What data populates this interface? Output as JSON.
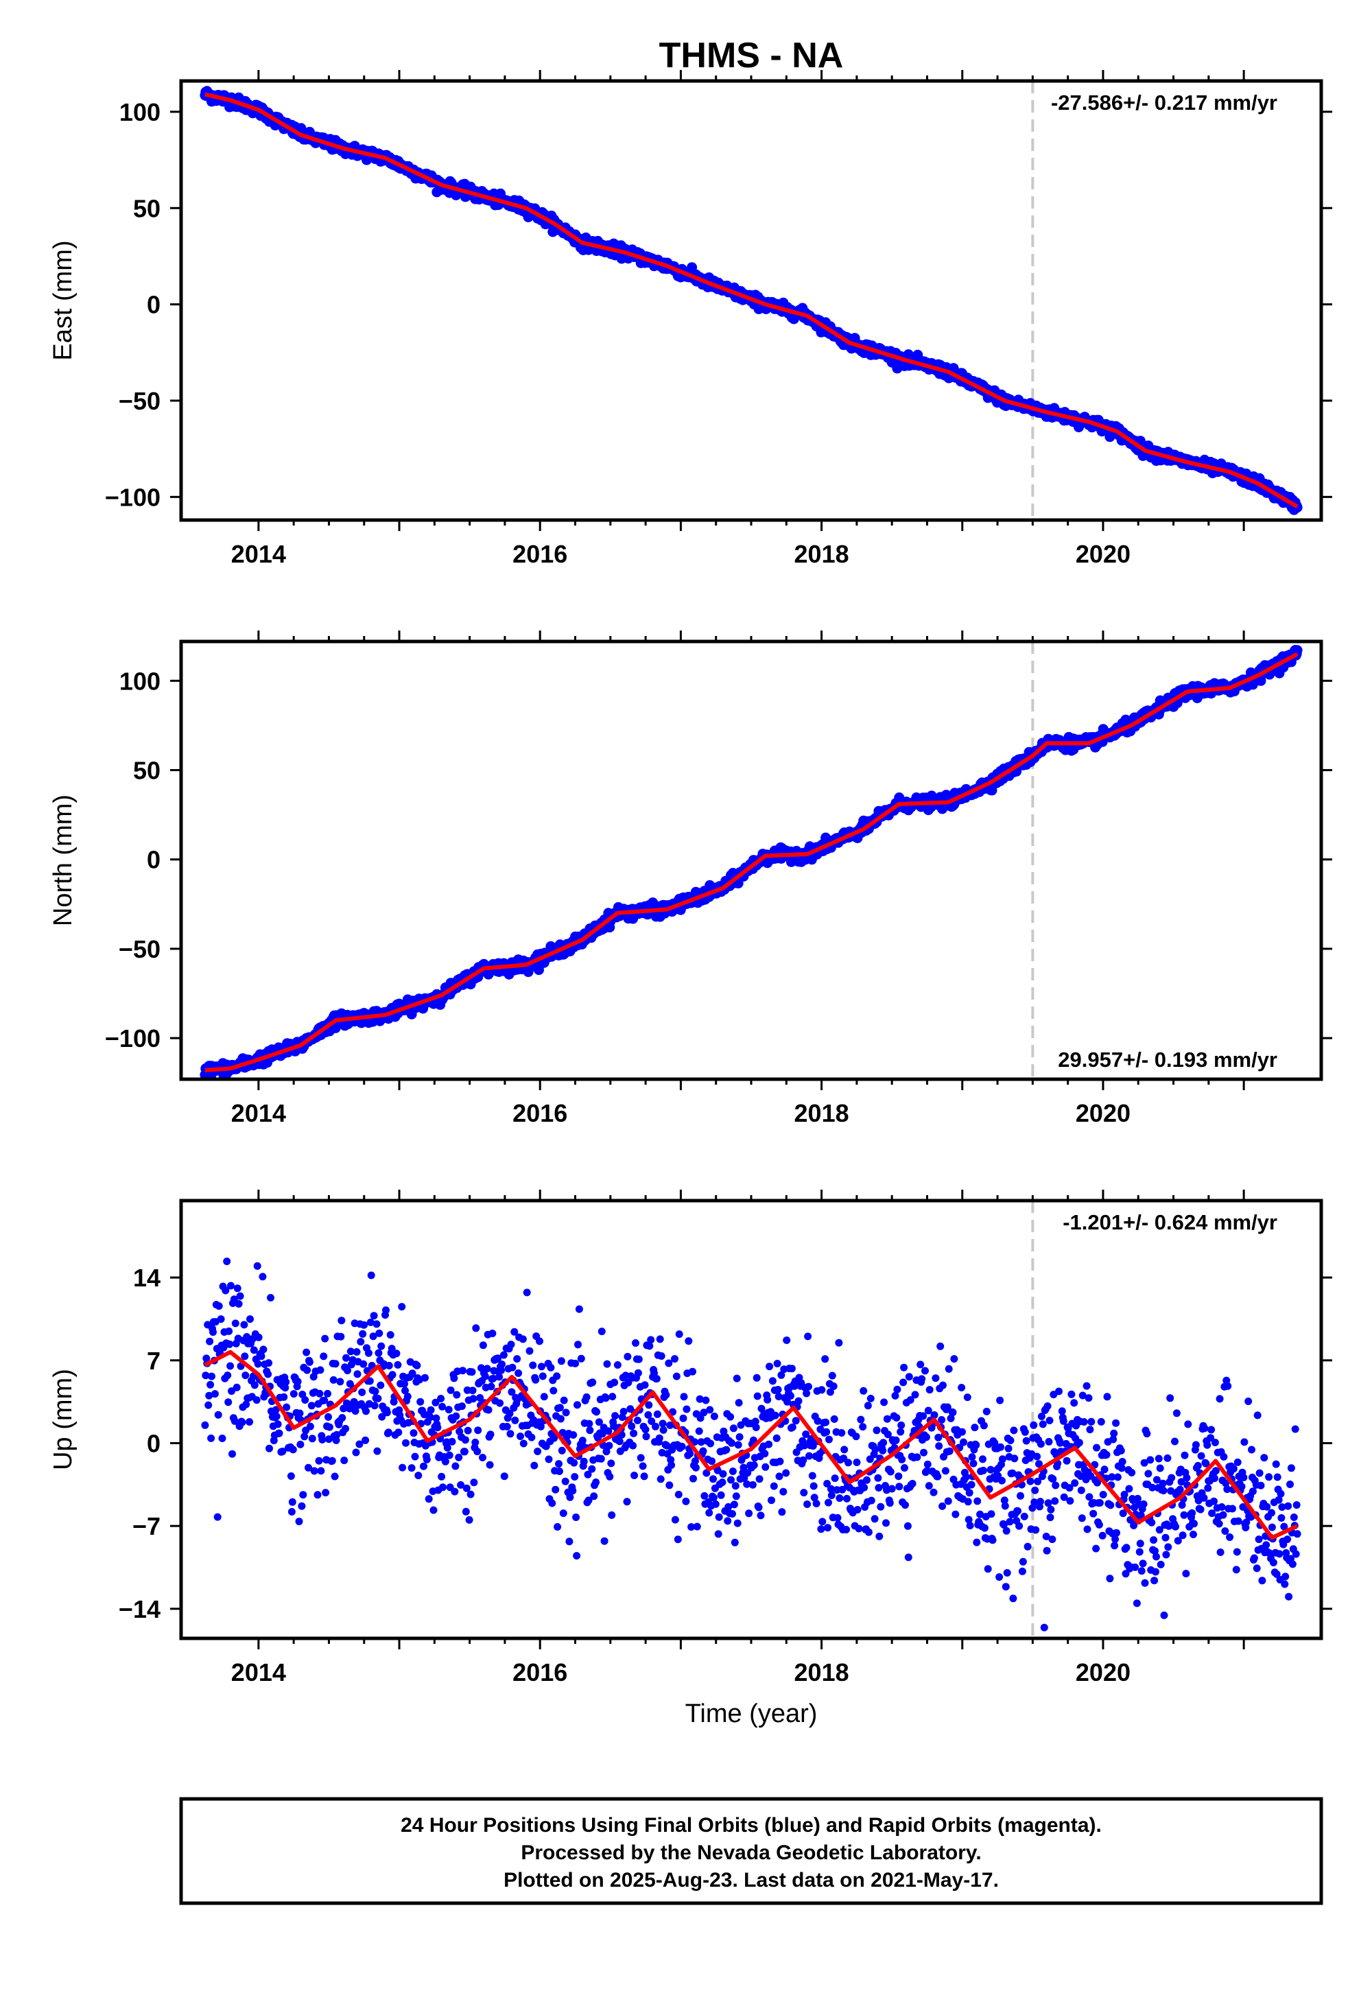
{
  "title": "THMS - NA",
  "colors": {
    "points": "#0000ff",
    "fit": "#ff0000",
    "marker_line": "#c8c8c8",
    "frame": "#000000"
  },
  "chart_data": [
    {
      "type": "scatter",
      "name": "east",
      "ylabel": "East (mm)",
      "xlabel": "",
      "xlim": [
        2013.45,
        2021.55
      ],
      "ylim": [
        -112,
        116
      ],
      "yticks": [
        -100,
        -50,
        0,
        50,
        100
      ],
      "ytick_labels": [
        "−100",
        "−50",
        "0",
        "50",
        "100"
      ],
      "xticks": [
        2014,
        2016,
        2018,
        2020
      ],
      "xtick_labels": [
        "2014",
        "2016",
        "2018",
        "2020"
      ],
      "rate_label": "-27.586+/- 0.217 mm/yr",
      "rate_position": "top-right",
      "equipment_change": 2019.5,
      "start": 2013.62,
      "end": 2021.38,
      "start_value": 109,
      "rate": -27.586,
      "noise": 1.4,
      "fit_x": [
        2013.62,
        2013.8,
        2014.0,
        2014.3,
        2014.6,
        2014.9,
        2015.3,
        2015.6,
        2015.9,
        2016.1,
        2016.3,
        2016.6,
        2016.9,
        2017.2,
        2017.6,
        2017.9,
        2018.2,
        2018.6,
        2018.9,
        2019.3,
        2019.6,
        2019.9,
        2020.1,
        2020.3,
        2020.6,
        2020.9,
        2021.1,
        2021.38
      ],
      "fit_y": [
        109,
        106,
        101,
        88,
        81,
        76,
        62,
        56,
        50,
        42,
        32,
        27,
        20,
        11,
        0,
        -6,
        -20,
        -29,
        -35,
        -50,
        -56,
        -61,
        -66,
        -76,
        -82,
        -87,
        -93,
        -105
      ]
    },
    {
      "type": "scatter",
      "name": "north",
      "ylabel": "North (mm)",
      "xlabel": "",
      "xlim": [
        2013.45,
        2021.55
      ],
      "ylim": [
        -123,
        122
      ],
      "yticks": [
        -100,
        -50,
        0,
        50,
        100
      ],
      "ytick_labels": [
        "−100",
        "−50",
        "0",
        "50",
        "100"
      ],
      "xticks": [
        2014,
        2016,
        2018,
        2020
      ],
      "xtick_labels": [
        "2014",
        "2016",
        "2018",
        "2020"
      ],
      "rate_label": "29.957+/- 0.193 mm/yr",
      "rate_position": "bottom-right",
      "equipment_change": 2019.5,
      "start": 2013.62,
      "end": 2021.38,
      "start_value": -118,
      "rate": 29.957,
      "noise": 1.6,
      "fit_x": [
        2013.62,
        2013.8,
        2014.0,
        2014.3,
        2014.55,
        2014.9,
        2015.3,
        2015.6,
        2015.9,
        2016.3,
        2016.55,
        2016.9,
        2017.3,
        2017.6,
        2017.9,
        2018.3,
        2018.55,
        2018.9,
        2019.2,
        2019.5,
        2019.6,
        2019.9,
        2020.2,
        2020.6,
        2020.9,
        2021.1,
        2021.38
      ],
      "fit_y": [
        -118,
        -117,
        -112,
        -104,
        -90,
        -87,
        -76,
        -61,
        -59,
        -45,
        -30,
        -28,
        -16,
        2,
        3,
        17,
        31,
        32,
        43,
        58,
        65,
        65,
        75,
        94,
        96,
        103,
        115
      ]
    },
    {
      "type": "scatter",
      "name": "up",
      "ylabel": "Up (mm)",
      "xlabel": "Time (year)",
      "xlim": [
        2013.45,
        2021.55
      ],
      "ylim": [
        -16.5,
        20.5
      ],
      "yticks": [
        -14,
        -7,
        0,
        7,
        14
      ],
      "ytick_labels": [
        "−14",
        "−7",
        "0",
        "7",
        "14"
      ],
      "xticks": [
        2014,
        2016,
        2018,
        2020
      ],
      "xtick_labels": [
        "2014",
        "2016",
        "2018",
        "2020"
      ],
      "rate_label": "-1.201+/- 0.624 mm/yr",
      "rate_position": "top-right",
      "equipment_change": 2019.5,
      "start": 2013.62,
      "end": 2021.38,
      "start_value": 4.5,
      "rate": -1.201,
      "noise": 3.2,
      "seasonal_amplitude": 3.7,
      "fit_x": [
        2013.62,
        2013.8,
        2014.0,
        2014.25,
        2014.55,
        2014.85,
        2015.2,
        2015.5,
        2015.8,
        2016.25,
        2016.55,
        2016.8,
        2017.2,
        2017.5,
        2017.8,
        2018.2,
        2018.5,
        2018.8,
        2019.2,
        2019.5,
        2019.8,
        2020.25,
        2020.55,
        2020.8,
        2021.2,
        2021.38
      ],
      "fit_y": [
        6.6,
        7.7,
        5.8,
        1.3,
        3.2,
        6.5,
        0.2,
        2.0,
        5.6,
        -1.1,
        0.9,
        4.3,
        -2.2,
        -0.5,
        3.0,
        -3.3,
        -1.0,
        2.0,
        -4.6,
        -2.6,
        -0.4,
        -6.7,
        -4.6,
        -1.5,
        -8.0,
        -7.0
      ]
    }
  ],
  "footer": {
    "line1": "24 Hour Positions Using Final Orbits (blue) and Rapid Orbits (magenta).",
    "line2": "Processed by the Nevada Geodetic Laboratory.",
    "line3": "Plotted on 2025-Aug-23. Last data on 2021-May-17."
  }
}
